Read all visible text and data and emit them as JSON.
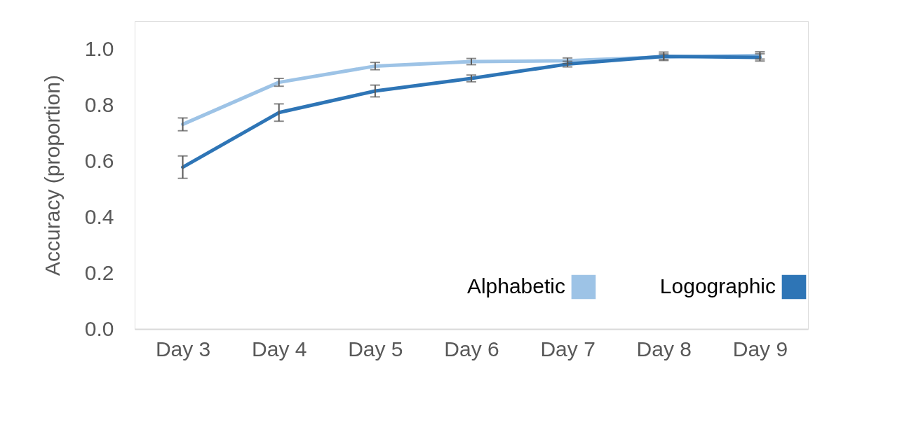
{
  "chart_data": {
    "type": "line",
    "ylabel": "Accuracy (proportion)",
    "categories": [
      "Day 3",
      "Day 4",
      "Day 5",
      "Day 6",
      "Day 7",
      "Day 8",
      "Day 9"
    ],
    "series": [
      {
        "name": "Alphabetic",
        "color": "#9dc3e6",
        "values": [
          0.731,
          0.881,
          0.939,
          0.955,
          0.958,
          0.972,
          0.977
        ],
        "errors": [
          0.023,
          0.014,
          0.013,
          0.011,
          0.01,
          0.01,
          0.013
        ]
      },
      {
        "name": "Logographic",
        "color": "#2e75b6",
        "values": [
          0.578,
          0.773,
          0.85,
          0.895,
          0.946,
          0.974,
          0.97
        ],
        "errors": [
          0.04,
          0.031,
          0.021,
          0.012,
          0.01,
          0.015,
          0.013
        ]
      }
    ],
    "ylim": [
      0,
      1.1
    ],
    "yticks": [
      {
        "value": 0,
        "label": "0.0"
      },
      {
        "value": 0.2,
        "label": "0.2"
      },
      {
        "value": 0.4,
        "label": "0.4"
      },
      {
        "value": 0.6,
        "label": "0.6"
      },
      {
        "value": 0.8,
        "label": "0.8"
      },
      {
        "value": 1.0,
        "label": "1.0"
      }
    ],
    "grid": false,
    "legend": "bottom right",
    "marker": "none",
    "line_style": "solid"
  }
}
